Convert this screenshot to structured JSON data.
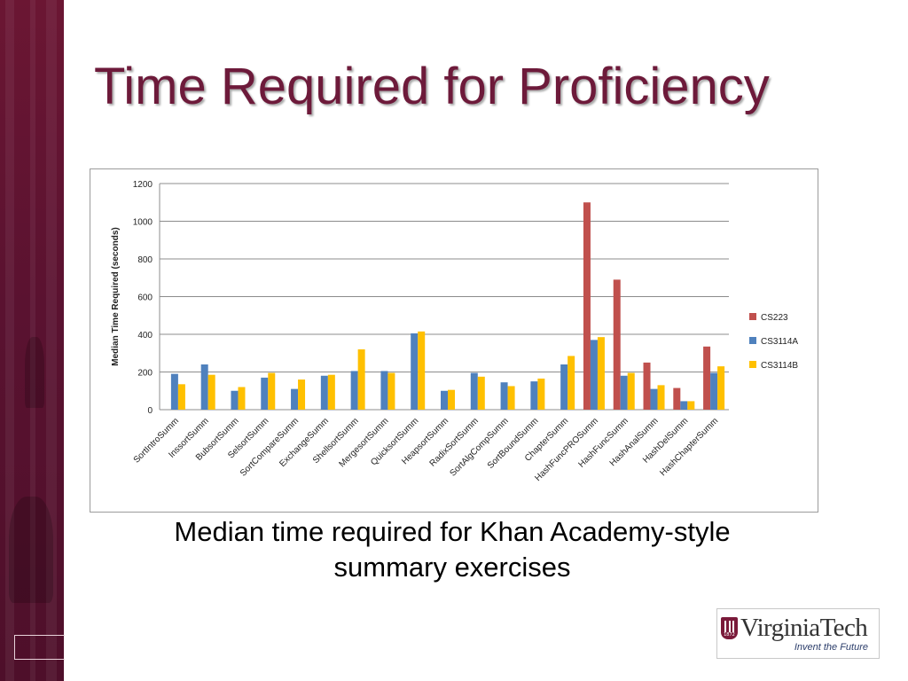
{
  "slide": {
    "title": "Time Required for Proficiency",
    "caption": "Median time required for Khan Academy-style summary exercises"
  },
  "logo": {
    "wordmark": "VirginiaTech",
    "tagline": "Invent the Future",
    "shield_year": "1872"
  },
  "colors": {
    "title": "#6d1a3a",
    "band": "#5a1230"
  },
  "chart_data": {
    "type": "bar",
    "ylabel": "Median Time Required (seconds)",
    "xlabel": "",
    "ylim": [
      0,
      1200
    ],
    "yticks": [
      0,
      200,
      400,
      600,
      800,
      1000,
      1200
    ],
    "grid": true,
    "legend_position": "right",
    "categories": [
      "SortIntroSumm",
      "InssortSumm",
      "BubsortSumm",
      "SelsortSumm",
      "SortCompareSumm",
      "ExchangeSumm",
      "ShellsortSumm",
      "MergesortSumm",
      "QuicksortSumm",
      "HeapsortSumm",
      "RadixSortSumm",
      "SortAlgCompSumm",
      "SortBoundSumm",
      "ChapterSumm",
      "HashFuncPROSumm",
      "HashFuncSumm",
      "HashAnalSumm",
      "HashDelSumm",
      "HashChapterSumm"
    ],
    "series": [
      {
        "name": "CS223",
        "color": "#c0504d",
        "values": [
          null,
          null,
          null,
          null,
          null,
          null,
          null,
          null,
          null,
          null,
          null,
          null,
          null,
          null,
          1100,
          690,
          250,
          115,
          335
        ]
      },
      {
        "name": "CS3114A",
        "color": "#4f81bd",
        "values": [
          190,
          240,
          100,
          170,
          110,
          180,
          205,
          205,
          405,
          100,
          195,
          145,
          150,
          240,
          370,
          180,
          110,
          45,
          195
        ]
      },
      {
        "name": "CS3114B",
        "color": "#ffc000",
        "values": [
          135,
          185,
          120,
          195,
          160,
          185,
          320,
          195,
          415,
          105,
          175,
          125,
          165,
          285,
          385,
          195,
          130,
          45,
          230
        ]
      }
    ]
  }
}
